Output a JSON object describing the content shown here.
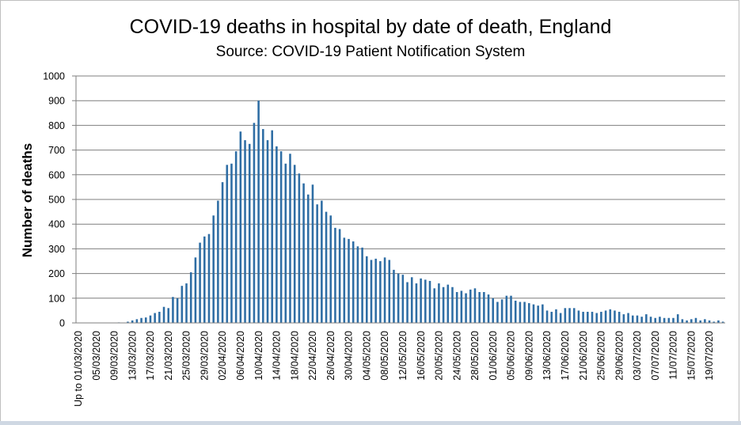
{
  "chart_data": {
    "type": "bar",
    "title": "COVID-19 deaths in hospital by date of death, England",
    "subtitle": "Source: COVID-19 Patient Notification System",
    "ylabel": "Number of deaths",
    "xlabel": "",
    "ylim": [
      0,
      1000
    ],
    "yticks": [
      0,
      100,
      200,
      300,
      400,
      500,
      600,
      700,
      800,
      900,
      1000
    ],
    "grid": true,
    "bar_color": "#2e6da4",
    "tick_labels": [
      "Up to 01/03/2020",
      "05/03/2020",
      "09/03/2020",
      "13/03/2020",
      "17/03/2020",
      "21/03/2020",
      "25/03/2020",
      "29/03/2020",
      "02/04/2020",
      "06/04/2020",
      "10/04/2020",
      "14/04/2020",
      "18/04/2020",
      "22/04/2020",
      "26/04/2020",
      "30/04/2020",
      "04/05/2020",
      "08/05/2020",
      "12/05/2020",
      "16/05/2020",
      "20/05/2020",
      "24/05/2020",
      "28/05/2020",
      "01/06/2020",
      "05/06/2020",
      "09/06/2020",
      "13/06/2020",
      "17/06/2020",
      "21/06/2020",
      "25/06/2020",
      "29/06/2020",
      "03/07/2020",
      "07/07/2020",
      "11/07/2020",
      "15/07/2020",
      "19/07/2020"
    ],
    "values": [
      0,
      0,
      0,
      0,
      1,
      0,
      0,
      0,
      1,
      2,
      1,
      5,
      10,
      15,
      20,
      22,
      30,
      40,
      45,
      65,
      60,
      105,
      100,
      150,
      160,
      205,
      265,
      325,
      350,
      360,
      435,
      495,
      570,
      640,
      645,
      695,
      775,
      740,
      725,
      810,
      900,
      785,
      740,
      780,
      715,
      695,
      645,
      685,
      640,
      605,
      565,
      520,
      560,
      480,
      495,
      450,
      435,
      385,
      380,
      345,
      340,
      330,
      310,
      305,
      270,
      255,
      260,
      250,
      265,
      255,
      215,
      200,
      195,
      165,
      185,
      160,
      180,
      175,
      170,
      140,
      160,
      145,
      155,
      145,
      125,
      130,
      120,
      135,
      140,
      125,
      125,
      115,
      100,
      85,
      95,
      110,
      110,
      90,
      85,
      85,
      80,
      75,
      70,
      75,
      50,
      45,
      55,
      40,
      60,
      60,
      60,
      50,
      45,
      45,
      45,
      40,
      45,
      50,
      55,
      50,
      45,
      35,
      40,
      30,
      30,
      25,
      35,
      25,
      20,
      25,
      20,
      20,
      20,
      35,
      15,
      10,
      15,
      20,
      10,
      15,
      10,
      5,
      10,
      5
    ]
  }
}
